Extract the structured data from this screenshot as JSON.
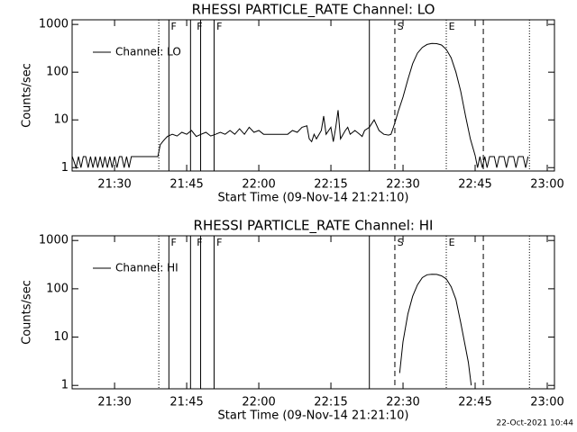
{
  "chart_data": [
    {
      "type": "line",
      "title": "RHESSI PARTICLE_RATE Channel: LO",
      "xlabel": "Start Time (09-Nov-14 21:21:10)",
      "ylabel": "Counts/sec",
      "log_y": true,
      "xlim": [
        1281.17,
        1381.5
      ],
      "ylim": [
        0.85,
        1250
      ],
      "xticks": [
        {
          "value": 1290,
          "label": "21:30"
        },
        {
          "value": 1305,
          "label": "21:45"
        },
        {
          "value": 1320,
          "label": "22:00"
        },
        {
          "value": 1335,
          "label": "22:15"
        },
        {
          "value": 1350,
          "label": "22:30"
        },
        {
          "value": 1365,
          "label": "22:45"
        },
        {
          "value": 1380,
          "label": "23:00"
        }
      ],
      "yticks": [
        1,
        10,
        100,
        1000
      ],
      "x": [
        1281.2,
        1282,
        1282.5,
        1283,
        1283.5,
        1284,
        1284.5,
        1285,
        1285.5,
        1286,
        1286.5,
        1287,
        1287.5,
        1288,
        1288.5,
        1289,
        1289.5,
        1290,
        1290.5,
        1291,
        1291.5,
        1292,
        1292.5,
        1293,
        1293.5,
        1298,
        1299,
        1299.5,
        1300,
        1300.5,
        1301,
        1302,
        1303,
        1304,
        1305,
        1306,
        1307,
        1308,
        1309,
        1310,
        1311,
        1312,
        1313,
        1314,
        1315,
        1316,
        1317,
        1318,
        1319,
        1320,
        1321,
        1322,
        1324,
        1326,
        1327,
        1328,
        1329,
        1330,
        1330.5,
        1331,
        1331.5,
        1332,
        1333,
        1333.5,
        1334,
        1335,
        1335.5,
        1336,
        1336.5,
        1337,
        1338,
        1338.5,
        1339,
        1340,
        1341,
        1341.5,
        1342,
        1343,
        1344,
        1345,
        1346,
        1347,
        1347.5,
        1348,
        1348.5,
        1349,
        1350,
        1351,
        1352,
        1353,
        1354,
        1355,
        1356,
        1357,
        1358,
        1359,
        1360,
        1361,
        1362,
        1363,
        1364,
        1365,
        1365.5,
        1366,
        1366.5,
        1367,
        1367.5,
        1368,
        1369,
        1369.5,
        1370,
        1371,
        1371.5,
        1372,
        1373,
        1373.5,
        1374,
        1375,
        1375.5,
        1376
      ],
      "series": [
        {
          "name": "Channel: LO",
          "color": "#000000",
          "values": [
            1.7,
            1,
            1.7,
            1,
            1.7,
            1.7,
            1,
            1.7,
            1,
            1.7,
            1,
            1.7,
            1,
            1.7,
            1,
            1.7,
            1,
            1.7,
            1,
            1.7,
            1.7,
            1,
            1.7,
            1,
            1.7,
            1.7,
            1.7,
            3,
            3.5,
            4,
            4.5,
            5,
            4.6,
            5.5,
            5,
            6,
            4.5,
            5,
            5.5,
            4.6,
            5,
            5.5,
            5,
            6,
            5,
            6.5,
            5,
            7,
            5.5,
            6,
            5,
            5,
            5,
            5,
            6,
            5.5,
            7,
            7.5,
            4,
            3.5,
            5,
            4,
            6,
            12,
            5,
            7,
            3.5,
            7,
            16,
            4,
            6,
            7,
            5,
            6,
            5,
            4.5,
            6,
            7,
            10,
            6,
            5,
            4.8,
            5,
            7,
            10,
            15,
            30,
            70,
            150,
            250,
            330,
            380,
            400,
            395,
            370,
            300,
            200,
            100,
            40,
            12,
            4,
            1.8,
            1,
            1.7,
            1,
            1.7,
            1,
            1.7,
            1.7,
            1,
            1.7,
            1.7,
            1,
            1.7,
            1.7,
            1,
            1.7,
            1.7,
            1,
            1.7
          ]
        }
      ],
      "flare_lines": [
        {
          "x": 1299.2,
          "style": "dotted"
        },
        {
          "x": 1301.3,
          "style": "solid"
        },
        {
          "x": 1305.8,
          "style": "solid"
        },
        {
          "x": 1307.9,
          "style": "solid"
        },
        {
          "x": 1310.7,
          "style": "solid"
        },
        {
          "x": 1343,
          "style": "solid"
        },
        {
          "x": 1348.3,
          "style": "dashed"
        },
        {
          "x": 1359,
          "style": "dotted"
        },
        {
          "x": 1366.7,
          "style": "dashed"
        },
        {
          "x": 1376.3,
          "style": "dotted"
        }
      ],
      "flare_labels": [
        {
          "x": 1301.7,
          "text": "F"
        },
        {
          "x": 1307.1,
          "text": "F"
        },
        {
          "x": 1311.2,
          "text": "F"
        },
        {
          "x": 1348.8,
          "text": "S"
        },
        {
          "x": 1359.5,
          "text": "E"
        }
      ]
    },
    {
      "type": "line",
      "title": "RHESSI PARTICLE_RATE Channel: HI",
      "xlabel": "Start Time (09-Nov-14 21:21:10)",
      "ylabel": "Counts/sec",
      "log_y": true,
      "xlim": [
        1281.17,
        1381.5
      ],
      "ylim": [
        0.85,
        1250
      ],
      "xticks": [
        {
          "value": 1290,
          "label": "21:30"
        },
        {
          "value": 1305,
          "label": "21:45"
        },
        {
          "value": 1320,
          "label": "22:00"
        },
        {
          "value": 1335,
          "label": "22:15"
        },
        {
          "value": 1350,
          "label": "22:30"
        },
        {
          "value": 1365,
          "label": "22:45"
        },
        {
          "value": 1380,
          "label": "23:00"
        }
      ],
      "yticks": [
        1,
        10,
        100,
        1000
      ],
      "x": [
        1349.3,
        1350,
        1351,
        1352,
        1353,
        1354,
        1355,
        1356,
        1357,
        1358,
        1359,
        1360,
        1361,
        1362,
        1363,
        1363.6,
        1364.2
      ],
      "series": [
        {
          "name": "Channel: HI",
          "color": "#000000",
          "values": [
            1.8,
            8,
            30,
            70,
            120,
            170,
            195,
            200,
            198,
            185,
            160,
            110,
            60,
            20,
            6,
            3,
            1
          ]
        }
      ],
      "flare_lines": [
        {
          "x": 1299.2,
          "style": "dotted"
        },
        {
          "x": 1301.3,
          "style": "solid"
        },
        {
          "x": 1305.8,
          "style": "solid"
        },
        {
          "x": 1307.9,
          "style": "solid"
        },
        {
          "x": 1310.7,
          "style": "solid"
        },
        {
          "x": 1343,
          "style": "solid"
        },
        {
          "x": 1348.3,
          "style": "dashed"
        },
        {
          "x": 1359,
          "style": "dotted"
        },
        {
          "x": 1366.7,
          "style": "dashed"
        },
        {
          "x": 1376.3,
          "style": "dotted"
        }
      ],
      "flare_labels": [
        {
          "x": 1301.7,
          "text": "F"
        },
        {
          "x": 1307.1,
          "text": "F"
        },
        {
          "x": 1311.2,
          "text": "F"
        },
        {
          "x": 1348.8,
          "text": "S"
        },
        {
          "x": 1359.5,
          "text": "E"
        }
      ]
    }
  ],
  "timestamp": "22-Oct-2021 10:44"
}
